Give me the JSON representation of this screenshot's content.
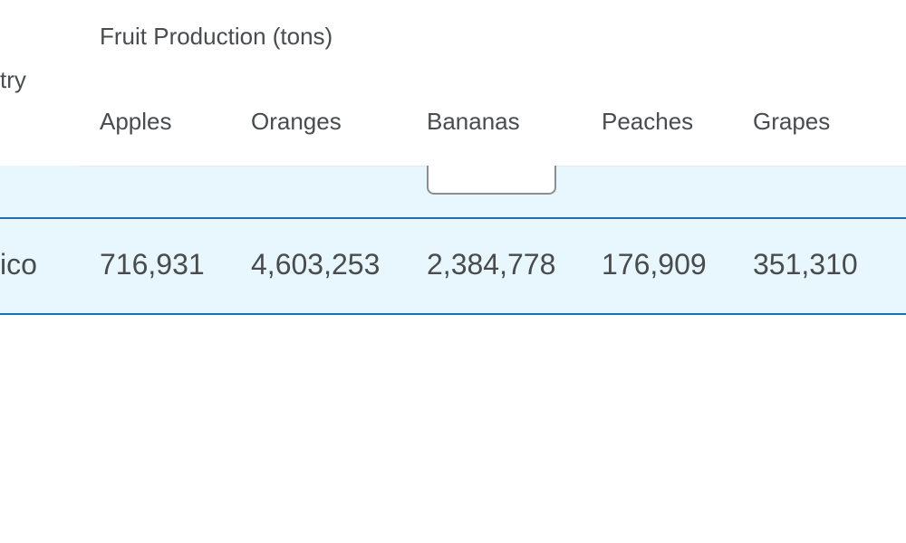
{
  "table": {
    "group_header": "Fruit Production (tons)",
    "country_header": "try",
    "columns": [
      "Apples",
      "Oranges",
      "Bananas",
      "Peaches",
      "Grapes"
    ],
    "rows": [
      {
        "country": "ico",
        "values": [
          "716,931",
          "4,603,253",
          "2,384,778",
          "176,909",
          "351,310"
        ]
      }
    ]
  },
  "colors": {
    "row_background": "#e8f7fd",
    "row_border": "#1c70b1",
    "text": "#494c4e"
  }
}
